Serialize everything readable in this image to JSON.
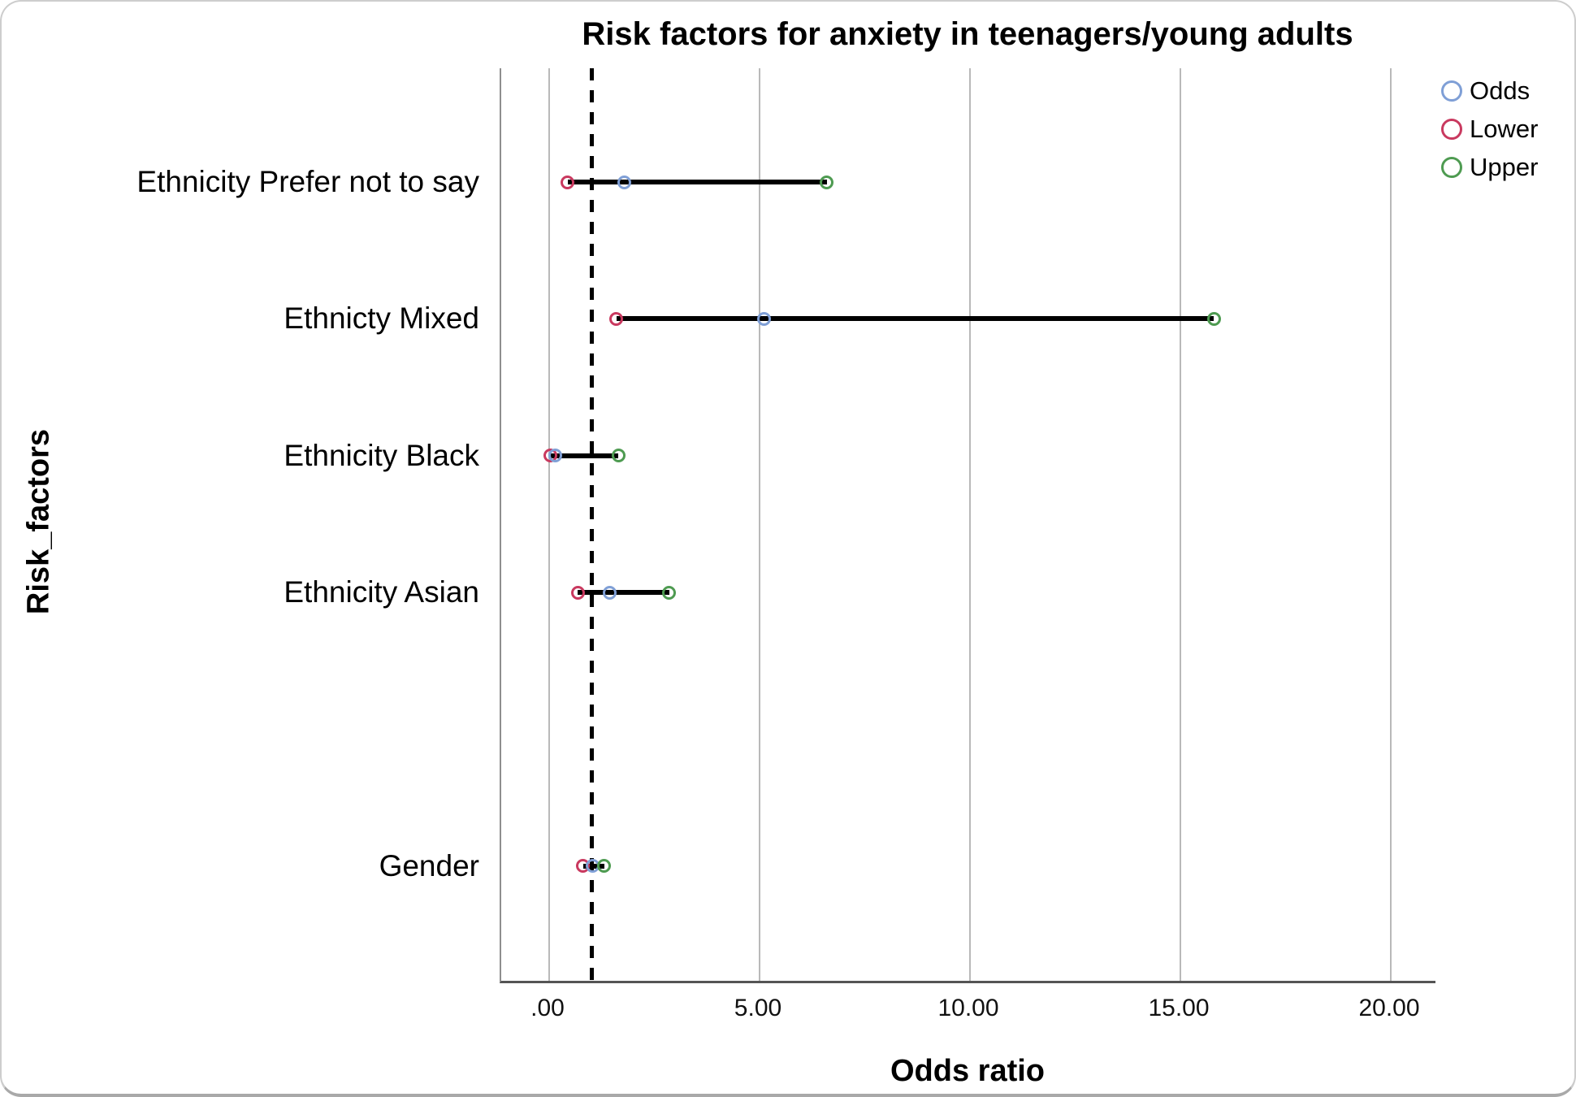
{
  "chart_data": {
    "type": "scatter",
    "chart_style": "forest-plot-dot-and-interval",
    "title": "Risk factors for anxiety in teenagers/young adults",
    "xlabel": "Odds ratio",
    "ylabel": "Risk_factors",
    "x_ticks": [
      {
        "label": ".00",
        "value": 0
      },
      {
        "label": "5.00",
        "value": 5
      },
      {
        "label": "10.00",
        "value": 10
      },
      {
        "label": "15.00",
        "value": 15
      },
      {
        "label": "20.00",
        "value": 20
      }
    ],
    "xlim": [
      -1.1,
      21.1
    ],
    "reference_line_x": 1.0,
    "grid": "vertical gridlines on",
    "legend_position": "top-right",
    "legend": [
      {
        "label": "Odds",
        "color": "#7f9fd6"
      },
      {
        "label": "Lower",
        "color": "#c9395f"
      },
      {
        "label": "Upper",
        "color": "#4e9b51"
      }
    ],
    "slot_count": 6,
    "categories": [
      {
        "label": "Ethnicity Prefer not to say",
        "slot": 0,
        "lower": 0.44,
        "odds": 1.78,
        "upper": 6.6
      },
      {
        "label": "Ethnicty Mixed",
        "slot": 1,
        "lower": 1.6,
        "odds": 5.1,
        "upper": 15.8
      },
      {
        "label": "Ethnicity Black",
        "slot": 2,
        "lower": 0.02,
        "odds": 0.15,
        "upper": 1.65
      },
      {
        "label": "Ethnicity Asian",
        "slot": 3,
        "lower": 0.68,
        "odds": 1.43,
        "upper": 2.85
      },
      {
        "label": "Gender",
        "slot": 5,
        "lower": 0.81,
        "odds": 1.03,
        "upper": 1.31
      }
    ],
    "colors": {
      "odds": "#7f9fd6",
      "lower": "#c9395f",
      "upper": "#4e9b51",
      "interval_line": "#000000",
      "reference_line": "#000000",
      "gridline": "#b9b9b9",
      "axis_spine": "#8e8e8e",
      "axis_bottom": "#545454",
      "text": "#000000"
    }
  }
}
